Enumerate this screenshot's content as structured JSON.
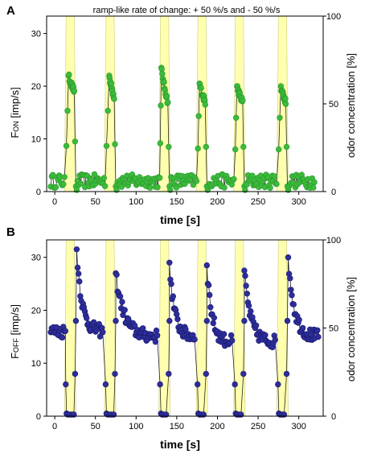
{
  "figure": {
    "title": "ramp-like rate of change: + 50 %/s and - 50 %/s"
  },
  "chart_data": [
    {
      "type": "scatter",
      "panel_label": "A",
      "title": "ramp-like rate of change: + 50 %/s and - 50 %/s",
      "xlabel": "time [s]",
      "ylabel_main": "F",
      "ylabel_sub": "ON",
      "ylabel_unit": " [imp/s]",
      "y2label": "odor concentration [%]",
      "xlim": [
        -10,
        330
      ],
      "ylim": [
        0,
        33.3
      ],
      "y2lim": [
        0,
        100
      ],
      "xticks": [
        0,
        50,
        100,
        150,
        200,
        250,
        300
      ],
      "yticks": [
        0,
        10,
        20,
        30
      ],
      "y2ticks": [
        0,
        50,
        100
      ],
      "grid": false,
      "colors": {
        "points": "#3cba3c",
        "points_edge": "#2a9a2a",
        "line": "#222222",
        "stimulus": "#ffffb0",
        "stimulus_edge": "#d8d890"
      },
      "stimulus": [
        {
          "start": 12,
          "plateau_start": 14,
          "plateau_end": 24,
          "end": 26,
          "max": 100
        },
        {
          "start": 61,
          "plateau_start": 63,
          "plateau_end": 73,
          "end": 75,
          "max": 100
        },
        {
          "start": 128,
          "plateau_start": 130,
          "plateau_end": 140,
          "end": 142,
          "max": 100
        },
        {
          "start": 174,
          "plateau_start": 176,
          "plateau_end": 186,
          "end": 188,
          "max": 100
        },
        {
          "start": 220,
          "plateau_start": 222,
          "plateau_end": 232,
          "end": 234,
          "max": 100
        },
        {
          "start": 273,
          "plateau_start": 275,
          "plateau_end": 285,
          "end": 287,
          "max": 100
        }
      ],
      "responses": [
        {
          "onset": 13,
          "peak_t": 17,
          "peak": 22,
          "peak2": 19,
          "end": 26,
          "end_v": 1
        },
        {
          "onset": 62,
          "peak_t": 67,
          "peak": 22,
          "peak2": 18,
          "end": 75,
          "end_v": 1
        },
        {
          "onset": 129,
          "peak_t": 131,
          "peak": 23.5,
          "peak2": 17,
          "end": 141,
          "end_v": 1
        },
        {
          "onset": 175,
          "peak_t": 178,
          "peak": 20.5,
          "peak2": 17,
          "end": 187,
          "end_v": 1
        },
        {
          "onset": 221,
          "peak_t": 224,
          "peak": 20,
          "peak2": 17,
          "end": 233,
          "end_v": 1
        },
        {
          "onset": 274,
          "peak_t": 278,
          "peak": 20,
          "peak2": 17,
          "end": 286,
          "end_v": 1
        }
      ],
      "baseline": 2
    },
    {
      "type": "scatter",
      "panel_label": "B",
      "xlabel": "time [s]",
      "ylabel_main": "F",
      "ylabel_sub": "OFF",
      "ylabel_unit": " [imp/s]",
      "y2label": "odor concentration [%]",
      "xlim": [
        -10,
        330
      ],
      "ylim": [
        0,
        33.3
      ],
      "y2lim": [
        0,
        100
      ],
      "xticks": [
        0,
        50,
        100,
        150,
        200,
        250,
        300
      ],
      "yticks": [
        0,
        10,
        20,
        30
      ],
      "y2ticks": [
        0,
        50,
        100
      ],
      "grid": false,
      "colors": {
        "points": "#2d2d9a",
        "points_edge": "#1a1a70",
        "line": "#222222",
        "stimulus": "#ffffb0",
        "stimulus_edge": "#d8d890"
      },
      "stimulus": [
        {
          "start": 12,
          "plateau_start": 14,
          "plateau_end": 24,
          "end": 26,
          "max": 100
        },
        {
          "start": 61,
          "plateau_start": 63,
          "plateau_end": 73,
          "end": 75,
          "max": 100
        },
        {
          "start": 128,
          "plateau_start": 130,
          "plateau_end": 140,
          "end": 142,
          "max": 100
        },
        {
          "start": 174,
          "plateau_start": 176,
          "plateau_end": 186,
          "end": 188,
          "max": 100
        },
        {
          "start": 220,
          "plateau_start": 222,
          "plateau_end": 232,
          "end": 234,
          "max": 100
        },
        {
          "start": 273,
          "plateau_start": 275,
          "plateau_end": 285,
          "end": 287,
          "max": 100
        }
      ],
      "responses": [
        {
          "off_start": 13,
          "off_end": 25,
          "peak_t": 27,
          "peak": 31.5,
          "decay_to": 16,
          "next": 60
        },
        {
          "off_start": 62,
          "off_end": 74,
          "peak_t": 75,
          "peak": 27,
          "decay_to": 15,
          "next": 127
        },
        {
          "off_start": 129,
          "off_end": 140,
          "peak_t": 141,
          "peak": 29,
          "decay_to": 15,
          "next": 173
        },
        {
          "off_start": 175,
          "off_end": 186,
          "peak_t": 187,
          "peak": 28.5,
          "decay_to": 14,
          "next": 219
        },
        {
          "off_start": 221,
          "off_end": 232,
          "peak_t": 233,
          "peak": 27.5,
          "decay_to": 14,
          "next": 272
        },
        {
          "off_start": 274,
          "off_end": 285,
          "peak_t": 287,
          "peak": 30,
          "decay_to": 15,
          "next": 325
        }
      ],
      "baseline": 16
    }
  ]
}
